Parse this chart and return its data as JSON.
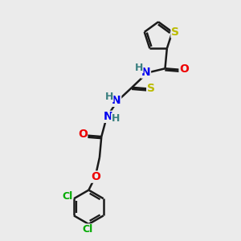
{
  "background_color": "#ebebeb",
  "bond_color": "#1a1a1a",
  "bond_width": 1.8,
  "atom_colors": {
    "C": "#1a1a1a",
    "H": "#3a8080",
    "N": "#0000ee",
    "O": "#ee0000",
    "S": "#bbbb00",
    "Cl": "#00aa00"
  },
  "font_size": 9,
  "fig_width": 3.0,
  "fig_height": 3.0,
  "dpi": 100,
  "xlim": [
    0,
    10
  ],
  "ylim": [
    0,
    10
  ]
}
